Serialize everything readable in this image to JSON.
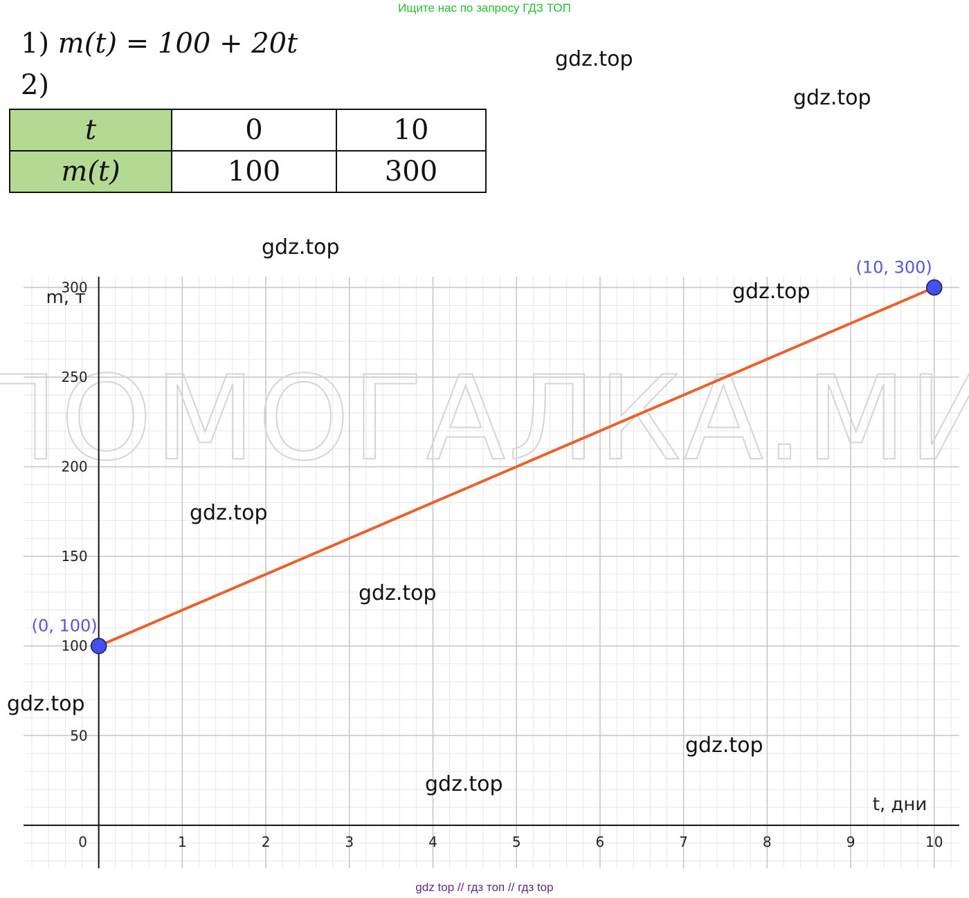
{
  "banner_top": "Ищите нас по запросу ГДЗ ТОП",
  "banner_bottom": "gdz top  //  гдз топ  //  гдз top",
  "formula": {
    "item1_number": "1)",
    "item1_expression": "m(t) = 100 + 20t",
    "item2_number": "2)"
  },
  "table": {
    "row1_head": "t",
    "row2_head": "m(t)",
    "row1_values": [
      "0",
      "10"
    ],
    "row2_values": [
      "100",
      "300"
    ]
  },
  "watermarks": {
    "small": "gdz.top",
    "big": "ПОМОГАЛКА.МИ"
  },
  "chart_data": {
    "type": "line",
    "xlabel": "t, дни",
    "ylabel": "m, т",
    "xlim": [
      -0.9,
      10.3
    ],
    "ylim": [
      -24,
      306
    ],
    "x_ticks": [
      0,
      1,
      2,
      3,
      4,
      5,
      6,
      7,
      8,
      9,
      10
    ],
    "y_ticks": [
      50,
      100,
      150,
      200,
      250,
      300
    ],
    "grid": true,
    "series": [
      {
        "values": [
          {
            "x": 0,
            "y": 100
          },
          {
            "x": 10,
            "y": 300
          }
        ],
        "color": "#e8622c"
      }
    ],
    "points": [
      {
        "x": 0,
        "y": 100,
        "label": "(0, 100)",
        "color": "#4450f2"
      },
      {
        "x": 10,
        "y": 300,
        "label": "(10, 300)",
        "color": "#4450f2"
      }
    ]
  }
}
